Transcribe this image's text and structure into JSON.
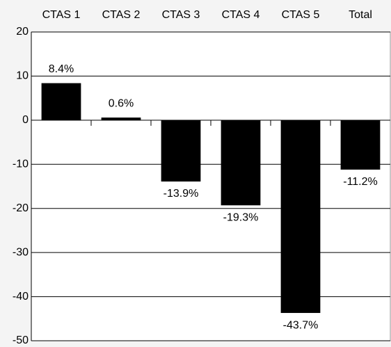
{
  "chart_data": {
    "type": "bar",
    "categories": [
      "CTAS 1",
      "CTAS 2",
      "CTAS 3",
      "CTAS 4",
      "CTAS 5",
      "Total"
    ],
    "values": [
      8.4,
      0.6,
      -13.9,
      -19.3,
      -43.7,
      -11.2
    ],
    "value_labels": [
      "8.4%",
      "0.6%",
      "-13.9%",
      "-19.3%",
      "-43.7%",
      "-11.2%"
    ],
    "color": "#000000",
    "ylim": [
      -50,
      20
    ],
    "yticks": [
      -50,
      -40,
      -30,
      -20,
      -10,
      0,
      10,
      20
    ],
    "grid": true
  }
}
